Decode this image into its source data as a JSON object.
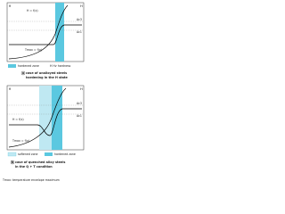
{
  "panels": [
    {
      "axis_left": "θ",
      "axis_right": "H",
      "curve_labels": [
        "H = f(x)",
        "Tmax = f(x)"
      ],
      "levels": [
        "Ac3",
        "Ac1"
      ],
      "legend": [
        "hardened zone",
        "H Hv hardness"
      ],
      "caption_letter": "a",
      "caption": [
        "case of unalloyed steels",
        "hardening in the H state"
      ]
    },
    {
      "axis_left": "θ",
      "axis_right": "H",
      "curve_labels": [
        "H = f(x)",
        "Tmax = f(x)"
      ],
      "levels": [
        "Ac3",
        "Ac1"
      ],
      "legend": [
        "softened zone",
        "hardened zone"
      ],
      "caption_letter": "b",
      "caption": [
        "case of quenched alloy steels",
        "in the Q + T condition"
      ]
    }
  ],
  "footnote": "Tmax: temperature envelope maximum"
}
